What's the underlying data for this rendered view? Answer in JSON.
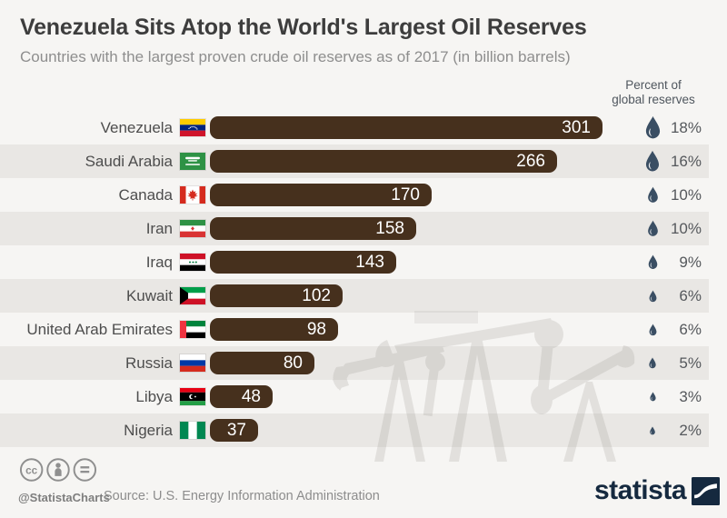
{
  "header": {
    "title": "Venezuela Sits Atop the World's Largest Oil Reserves",
    "subtitle": "Countries with the largest proven crude oil reserves as of 2017 (in billion barrels)"
  },
  "percent_header": {
    "line1": "Percent of",
    "line2": "global reserves"
  },
  "chart_data": {
    "type": "bar",
    "orientation": "horizontal",
    "title": "Venezuela Sits Atop the World's Largest Oil Reserves",
    "unit": "billion barrels",
    "categories": [
      "Venezuela",
      "Saudi Arabia",
      "Canada",
      "Iran",
      "Iraq",
      "Kuwait",
      "United Arab Emirates",
      "Russia",
      "Libya",
      "Nigeria"
    ],
    "values": [
      301,
      266,
      170,
      158,
      143,
      102,
      98,
      80,
      48,
      37
    ],
    "percent_of_global": [
      "18%",
      "16%",
      "10%",
      "10%",
      "9%",
      "6%",
      "6%",
      "5%",
      "3%",
      "2%"
    ],
    "flags": [
      "venezuela",
      "saudi-arabia",
      "canada",
      "iran",
      "iraq",
      "kuwait",
      "united-arab-emirates",
      "russia",
      "libya",
      "nigeria"
    ],
    "xlim": [
      0,
      310
    ],
    "value_labels": "inside-end",
    "grid": false,
    "legend": "none"
  },
  "footer": {
    "handle": "@StatistaCharts",
    "source_label": "Source: U.S. Energy Information Administration",
    "logo_text": "statista",
    "license_icons": [
      "cc-icon",
      "cc-by-icon",
      "cc-nd-icon"
    ]
  },
  "colors": {
    "bg": "#f6f5f3",
    "band": "#e9e7e4",
    "bar": "#46301d",
    "drop": "#3a4e63",
    "title": "#3d3d3d",
    "subtitle": "#8e8e8e",
    "label": "#4d4d4d",
    "pct": "#55585c",
    "footer": "#8d8d8d",
    "navy": "#15293f"
  }
}
